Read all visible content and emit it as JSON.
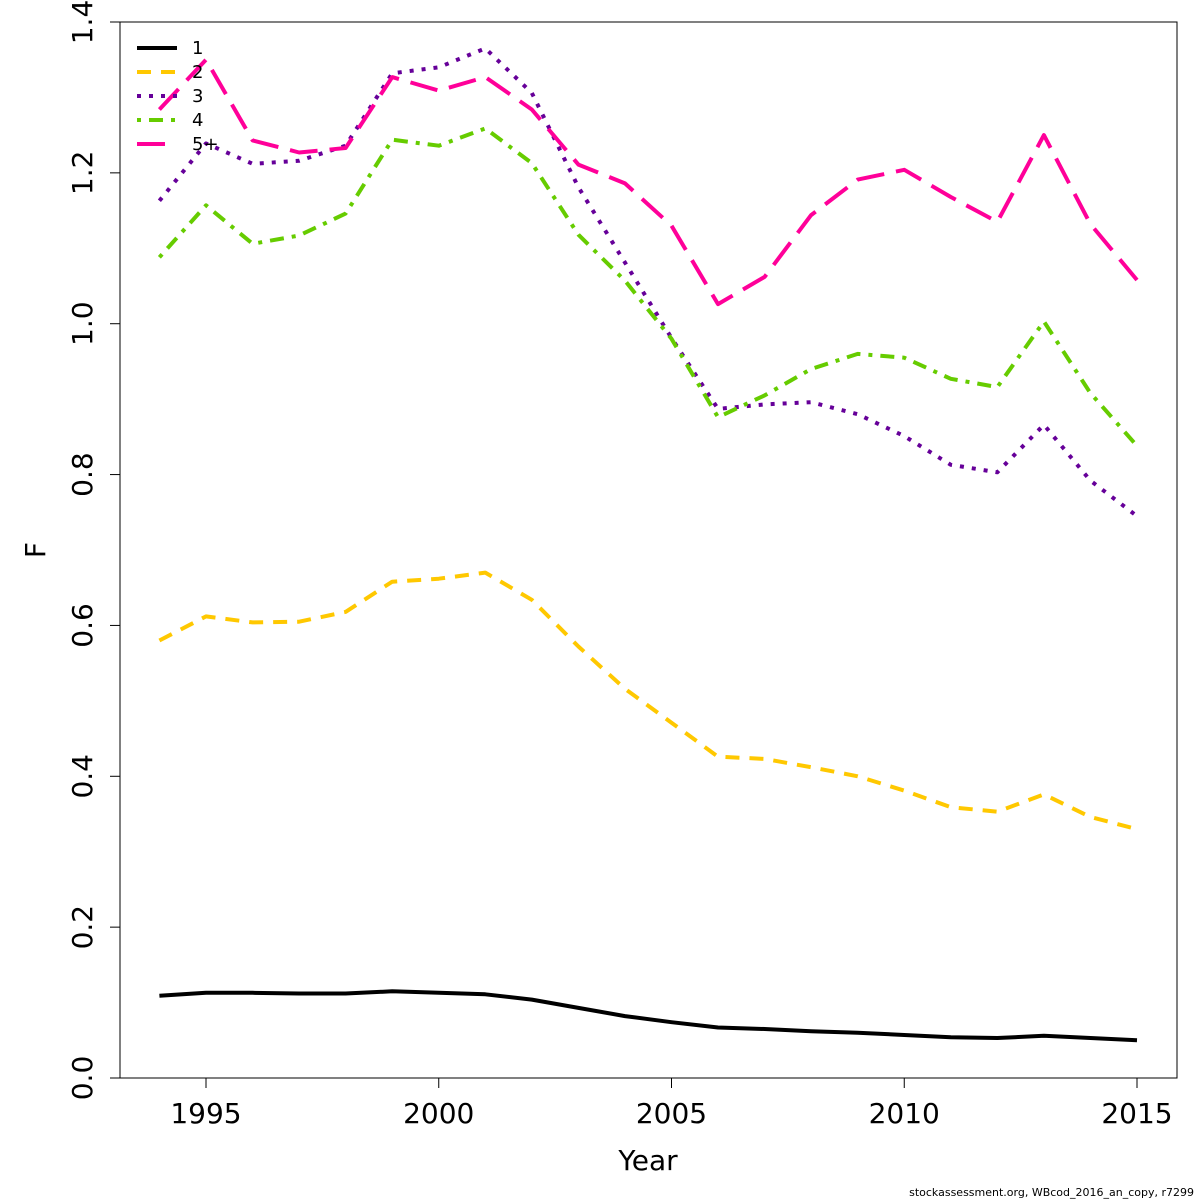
{
  "chart_data": {
    "type": "line",
    "title": "",
    "xlabel": "Year",
    "ylabel": "F",
    "xlim": [
      1992,
      2016
    ],
    "ylim": [
      0,
      1.4
    ],
    "x_ticks": [
      1995,
      2000,
      2005,
      2010,
      2015
    ],
    "y_ticks": [
      "0.0",
      "0.2",
      "0.4",
      "0.6",
      "0.8",
      "1.0",
      "1.2",
      "1.4"
    ],
    "x": [
      1994,
      1995,
      1996,
      1997,
      1998,
      1999,
      2000,
      2001,
      2002,
      2003,
      2004,
      2005,
      2006,
      2007,
      2008,
      2009,
      2010,
      2011,
      2012,
      2013,
      2014,
      2015
    ],
    "grid": false,
    "legend_position": "top-left",
    "series": [
      {
        "name": "1",
        "color": "#000000",
        "dash": "solid",
        "values": [
          0.109,
          0.113,
          0.113,
          0.112,
          0.112,
          0.115,
          0.113,
          0.111,
          0.104,
          0.093,
          0.082,
          0.074,
          0.067,
          0.065,
          0.062,
          0.06,
          0.057,
          0.054,
          0.053,
          0.056,
          0.053,
          0.05
        ]
      },
      {
        "name": "2",
        "color": "#FFC800",
        "dash": "dashed",
        "values": [
          0.58,
          0.612,
          0.604,
          0.605,
          0.618,
          0.658,
          0.662,
          0.67,
          0.634,
          0.572,
          0.516,
          0.471,
          0.426,
          0.423,
          0.412,
          0.4,
          0.381,
          0.359,
          0.353,
          0.376,
          0.346,
          0.33
        ]
      },
      {
        "name": "3",
        "color": "#660099",
        "dash": "dotted",
        "values": [
          1.163,
          1.239,
          1.212,
          1.216,
          1.236,
          1.332,
          1.34,
          1.365,
          1.306,
          1.181,
          1.081,
          0.981,
          0.887,
          0.893,
          0.896,
          0.88,
          0.851,
          0.813,
          0.803,
          0.866,
          0.792,
          0.745
        ]
      },
      {
        "name": "4",
        "color": "#66CC00",
        "dash": "dotdash",
        "values": [
          1.088,
          1.157,
          1.106,
          1.117,
          1.146,
          1.244,
          1.236,
          1.259,
          1.213,
          1.118,
          1.057,
          0.98,
          0.876,
          0.905,
          0.94,
          0.96,
          0.955,
          0.927,
          0.916,
          1.003,
          0.908,
          0.838
        ]
      },
      {
        "name": "5+",
        "color": "#FF0099",
        "dash": "longdash",
        "values": [
          1.284,
          1.35,
          1.243,
          1.227,
          1.233,
          1.327,
          1.309,
          1.327,
          1.284,
          1.211,
          1.186,
          1.13,
          1.026,
          1.062,
          1.144,
          1.191,
          1.204,
          1.168,
          1.135,
          1.25,
          1.132,
          1.058
        ]
      }
    ]
  },
  "footer": "stockassessment.org, WBcod_2016_an_copy, r7299"
}
